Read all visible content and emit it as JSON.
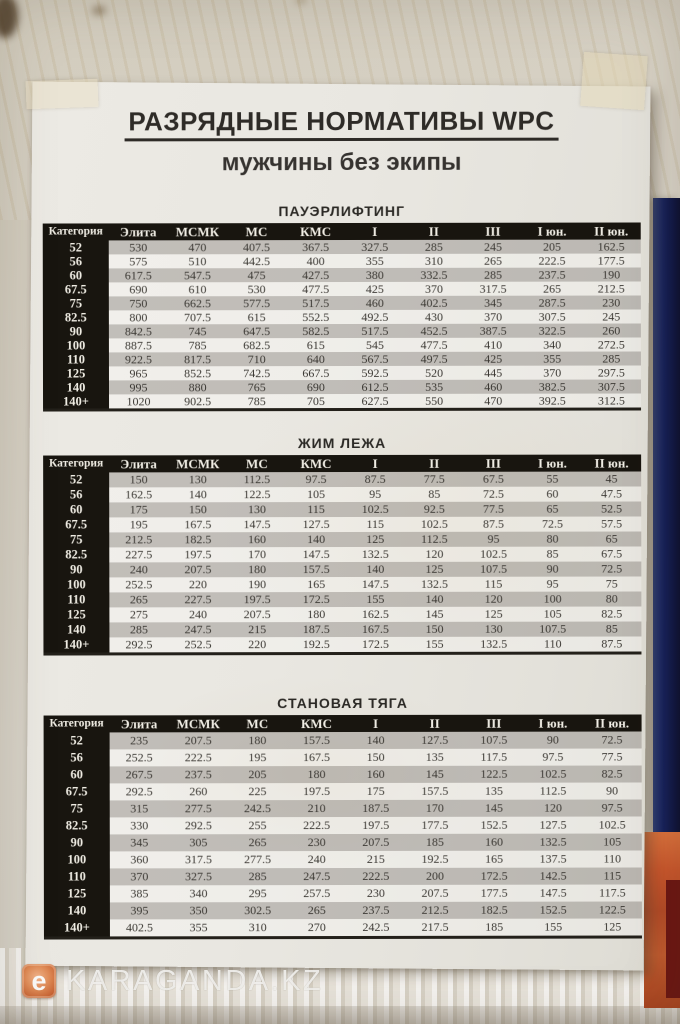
{
  "poster": {
    "title": "РАЗРЯДНЫЕ НОРМАТИВЫ WPC",
    "subtitle": "мужчины без экипы",
    "columns": [
      "Категория",
      "Элита",
      "МСМК",
      "МС",
      "КМС",
      "I",
      "II",
      "III",
      "I юн.",
      "II юн."
    ],
    "tables": [
      {
        "caption": "ПАУЭРЛИФТИНГ",
        "rows": [
          [
            "52",
            "530",
            "470",
            "407.5",
            "367.5",
            "327.5",
            "285",
            "245",
            "205",
            "162.5"
          ],
          [
            "56",
            "575",
            "510",
            "442.5",
            "400",
            "355",
            "310",
            "265",
            "222.5",
            "177.5"
          ],
          [
            "60",
            "617.5",
            "547.5",
            "475",
            "427.5",
            "380",
            "332.5",
            "285",
            "237.5",
            "190"
          ],
          [
            "67.5",
            "690",
            "610",
            "530",
            "477.5",
            "425",
            "370",
            "317.5",
            "265",
            "212.5"
          ],
          [
            "75",
            "750",
            "662.5",
            "577.5",
            "517.5",
            "460",
            "402.5",
            "345",
            "287.5",
            "230"
          ],
          [
            "82.5",
            "800",
            "707.5",
            "615",
            "552.5",
            "492.5",
            "430",
            "370",
            "307.5",
            "245"
          ],
          [
            "90",
            "842.5",
            "745",
            "647.5",
            "582.5",
            "517.5",
            "452.5",
            "387.5",
            "322.5",
            "260"
          ],
          [
            "100",
            "887.5",
            "785",
            "682.5",
            "615",
            "545",
            "477.5",
            "410",
            "340",
            "272.5"
          ],
          [
            "110",
            "922.5",
            "817.5",
            "710",
            "640",
            "567.5",
            "497.5",
            "425",
            "355",
            "285"
          ],
          [
            "125",
            "965",
            "852.5",
            "742.5",
            "667.5",
            "592.5",
            "520",
            "445",
            "370",
            "297.5"
          ],
          [
            "140",
            "995",
            "880",
            "765",
            "690",
            "612.5",
            "535",
            "460",
            "382.5",
            "307.5"
          ],
          [
            "140+",
            "1020",
            "902.5",
            "785",
            "705",
            "627.5",
            "550",
            "470",
            "392.5",
            "312.5"
          ]
        ]
      },
      {
        "caption": "ЖИМ ЛЕЖА",
        "rows": [
          [
            "52",
            "150",
            "130",
            "112.5",
            "97.5",
            "87.5",
            "77.5",
            "67.5",
            "55",
            "45"
          ],
          [
            "56",
            "162.5",
            "140",
            "122.5",
            "105",
            "95",
            "85",
            "72.5",
            "60",
            "47.5"
          ],
          [
            "60",
            "175",
            "150",
            "130",
            "115",
            "102.5",
            "92.5",
            "77.5",
            "65",
            "52.5"
          ],
          [
            "67.5",
            "195",
            "167.5",
            "147.5",
            "127.5",
            "115",
            "102.5",
            "87.5",
            "72.5",
            "57.5"
          ],
          [
            "75",
            "212.5",
            "182.5",
            "160",
            "140",
            "125",
            "112.5",
            "95",
            "80",
            "65"
          ],
          [
            "82.5",
            "227.5",
            "197.5",
            "170",
            "147.5",
            "132.5",
            "120",
            "102.5",
            "85",
            "67.5"
          ],
          [
            "90",
            "240",
            "207.5",
            "180",
            "157.5",
            "140",
            "125",
            "107.5",
            "90",
            "72.5"
          ],
          [
            "100",
            "252.5",
            "220",
            "190",
            "165",
            "147.5",
            "132.5",
            "115",
            "95",
            "75"
          ],
          [
            "110",
            "265",
            "227.5",
            "197.5",
            "172.5",
            "155",
            "140",
            "120",
            "100",
            "80"
          ],
          [
            "125",
            "275",
            "240",
            "207.5",
            "180",
            "162.5",
            "145",
            "125",
            "105",
            "82.5"
          ],
          [
            "140",
            "285",
            "247.5",
            "215",
            "187.5",
            "167.5",
            "150",
            "130",
            "107.5",
            "85"
          ],
          [
            "140+",
            "292.5",
            "252.5",
            "220",
            "192.5",
            "172.5",
            "155",
            "132.5",
            "110",
            "87.5"
          ]
        ]
      },
      {
        "caption": "СТАНОВАЯ ТЯГА",
        "rows": [
          [
            "52",
            "235",
            "207.5",
            "180",
            "157.5",
            "140",
            "127.5",
            "107.5",
            "90",
            "72.5"
          ],
          [
            "56",
            "252.5",
            "222.5",
            "195",
            "167.5",
            "150",
            "135",
            "117.5",
            "97.5",
            "77.5"
          ],
          [
            "60",
            "267.5",
            "237.5",
            "205",
            "180",
            "160",
            "145",
            "122.5",
            "102.5",
            "82.5"
          ],
          [
            "67.5",
            "292.5",
            "260",
            "225",
            "197.5",
            "175",
            "157.5",
            "135",
            "112.5",
            "90"
          ],
          [
            "75",
            "315",
            "277.5",
            "242.5",
            "210",
            "187.5",
            "170",
            "145",
            "120",
            "97.5"
          ],
          [
            "82.5",
            "330",
            "292.5",
            "255",
            "222.5",
            "197.5",
            "177.5",
            "152.5",
            "127.5",
            "102.5"
          ],
          [
            "90",
            "345",
            "305",
            "265",
            "230",
            "207.5",
            "185",
            "160",
            "132.5",
            "105"
          ],
          [
            "100",
            "360",
            "317.5",
            "277.5",
            "240",
            "215",
            "192.5",
            "165",
            "137.5",
            "110"
          ],
          [
            "110",
            "370",
            "327.5",
            "285",
            "247.5",
            "222.5",
            "200",
            "172.5",
            "142.5",
            "115"
          ],
          [
            "125",
            "385",
            "340",
            "295",
            "257.5",
            "230",
            "207.5",
            "177.5",
            "147.5",
            "117.5"
          ],
          [
            "140",
            "395",
            "350",
            "302.5",
            "265",
            "237.5",
            "212.5",
            "182.5",
            "152.5",
            "122.5"
          ],
          [
            "140+",
            "402.5",
            "355",
            "310",
            "270",
            "242.5",
            "217.5",
            "185",
            "155",
            "125"
          ]
        ]
      }
    ]
  },
  "watermark": {
    "logo_letter": "e",
    "text": "KARAGANDA.KZ"
  },
  "colors": {
    "wall": "#d2ccc0",
    "paper": "#e9e7e1",
    "header_black": "#18150f",
    "stripe_gray": "#c6c4c0",
    "blue_poster": "#16205a",
    "orange_poster": "#c8552b",
    "watermark_orange": "#d97a45"
  }
}
